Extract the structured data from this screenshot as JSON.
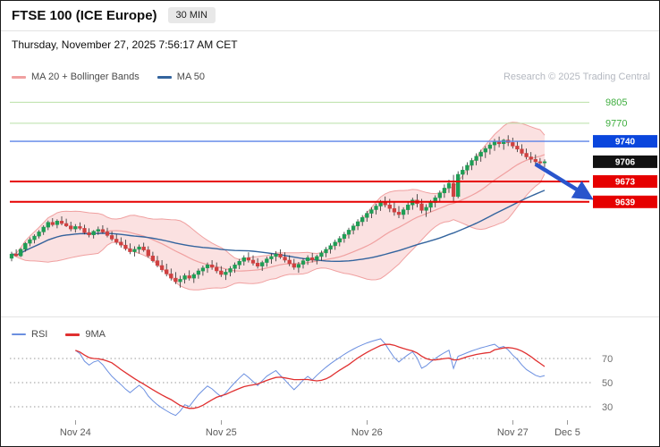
{
  "header": {
    "title": "FTSE 100 (ICE Europe)",
    "timeframe": "30 MIN",
    "datetime": "Thursday, November 27, 2025 7:56:17 AM CET"
  },
  "legend": {
    "main": [
      {
        "label": "MA 20 + Bollinger Bands"
      },
      {
        "label": "MA 50"
      }
    ],
    "credit": "Research © 2025 Trading Central",
    "lower": [
      {
        "label": "RSI"
      },
      {
        "label": "9MA"
      }
    ]
  },
  "chart_data": {
    "type": "candlestick",
    "title": "FTSE 100 (ICE Europe) 30 MIN",
    "ylim": [
      9460,
      9825
    ],
    "colors": {
      "up": "#1f9d55",
      "down": "#cf4040",
      "wick": "#2b2b2b",
      "band_fill": "rgba(244,163,163,0.33)",
      "ma20": "#f0a0a0",
      "ma50": "#33649e",
      "rsi": "#6b8fe0",
      "rsi_ma": "#e03030",
      "level_green_line": "#b9e0a6",
      "level_green_text": "#3fae3f",
      "level_blue_line": "#5b84e8",
      "level_red": "#e60000"
    },
    "levels": [
      {
        "label": "9805",
        "value": 9805,
        "line_color": "#b9e0a6",
        "line_width": 1,
        "text_color": "#3fae3f",
        "badge": null
      },
      {
        "label": "9770",
        "value": 9770,
        "line_color": "#b9e0a6",
        "line_width": 1,
        "text_color": "#3fae3f",
        "badge": null
      },
      {
        "label": "9740",
        "value": 9740,
        "line_color": "#5b84e8",
        "line_width": 1.4,
        "text_color": "#ffffff",
        "badge": "#0a46dd"
      },
      {
        "label": "9706",
        "value": 9706,
        "line_color": null,
        "line_width": 0,
        "text_color": "#ffffff",
        "badge": "#121212"
      },
      {
        "label": "9673",
        "value": 9673,
        "line_color": "#e60000",
        "line_width": 2,
        "text_color": "#ffffff",
        "badge": "#e60000"
      },
      {
        "label": "9639",
        "value": 9639,
        "line_color": "#e60000",
        "line_width": 2,
        "text_color": "#ffffff",
        "badge": "#e60000"
      }
    ],
    "candle_format": "[open, high, low, close]",
    "candles": [
      [
        9545,
        9556,
        9540,
        9552
      ],
      [
        9552,
        9560,
        9548,
        9549
      ],
      [
        9549,
        9562,
        9547,
        9560
      ],
      [
        9560,
        9572,
        9556,
        9570
      ],
      [
        9570,
        9580,
        9565,
        9576
      ],
      [
        9576,
        9585,
        9570,
        9582
      ],
      [
        9582,
        9592,
        9578,
        9589
      ],
      [
        9589,
        9600,
        9584,
        9597
      ],
      [
        9597,
        9608,
        9592,
        9605
      ],
      [
        9605,
        9612,
        9598,
        9601
      ],
      [
        9601,
        9610,
        9595,
        9607
      ],
      [
        9607,
        9615,
        9600,
        9603
      ],
      [
        9603,
        9611,
        9597,
        9599
      ],
      [
        9599,
        9606,
        9590,
        9594
      ],
      [
        9594,
        9602,
        9588,
        9598
      ],
      [
        9598,
        9605,
        9592,
        9595
      ],
      [
        9595,
        9601,
        9585,
        9588
      ],
      [
        9588,
        9595,
        9580,
        9584
      ],
      [
        9584,
        9592,
        9578,
        9590
      ],
      [
        9590,
        9598,
        9584,
        9593
      ],
      [
        9593,
        9600,
        9586,
        9589
      ],
      [
        9589,
        9596,
        9580,
        9583
      ],
      [
        9583,
        9590,
        9574,
        9577
      ],
      [
        9577,
        9585,
        9568,
        9572
      ],
      [
        9572,
        9580,
        9563,
        9567
      ],
      [
        9567,
        9576,
        9558,
        9561
      ],
      [
        9561,
        9570,
        9552,
        9556
      ],
      [
        9556,
        9565,
        9548,
        9560
      ],
      [
        9560,
        9568,
        9553,
        9564
      ],
      [
        9564,
        9571,
        9556,
        9559
      ],
      [
        9559,
        9565,
        9546,
        9549
      ],
      [
        9549,
        9556,
        9538,
        9541
      ],
      [
        9541,
        9549,
        9530,
        9533
      ],
      [
        9533,
        9542,
        9522,
        9526
      ],
      [
        9526,
        9536,
        9515,
        9519
      ],
      [
        9519,
        9528,
        9508,
        9512
      ],
      [
        9512,
        9522,
        9502,
        9506
      ],
      [
        9506,
        9516,
        9496,
        9510
      ],
      [
        9510,
        9520,
        9503,
        9516
      ],
      [
        9516,
        9525,
        9508,
        9512
      ],
      [
        9512,
        9521,
        9504,
        9518
      ],
      [
        9518,
        9528,
        9511,
        9524
      ],
      [
        9524,
        9533,
        9516,
        9529
      ],
      [
        9529,
        9538,
        9521,
        9534
      ],
      [
        9534,
        9542,
        9526,
        9530
      ],
      [
        9530,
        9538,
        9520,
        9524
      ],
      [
        9524,
        9532,
        9514,
        9518
      ],
      [
        9518,
        9527,
        9509,
        9522
      ],
      [
        9522,
        9532,
        9515,
        9528
      ],
      [
        9528,
        9538,
        9521,
        9534
      ],
      [
        9534,
        9544,
        9527,
        9540
      ],
      [
        9540,
        9550,
        9533,
        9546
      ],
      [
        9546,
        9555,
        9538,
        9542
      ],
      [
        9542,
        9550,
        9533,
        9537
      ],
      [
        9537,
        9545,
        9528,
        9532
      ],
      [
        9532,
        9541,
        9524,
        9538
      ],
      [
        9538,
        9548,
        9531,
        9544
      ],
      [
        9544,
        9553,
        9536,
        9548
      ],
      [
        9548,
        9557,
        9540,
        9552
      ],
      [
        9552,
        9560,
        9544,
        9547
      ],
      [
        9547,
        9555,
        9538,
        9542
      ],
      [
        9542,
        9550,
        9532,
        9536
      ],
      [
        9536,
        9544,
        9526,
        9530
      ],
      [
        9530,
        9539,
        9521,
        9535
      ],
      [
        9535,
        9545,
        9528,
        9541
      ],
      [
        9541,
        9550,
        9534,
        9546
      ],
      [
        9546,
        9554,
        9538,
        9542
      ],
      [
        9542,
        9551,
        9535,
        9548
      ],
      [
        9548,
        9558,
        9541,
        9554
      ],
      [
        9554,
        9564,
        9547,
        9560
      ],
      [
        9560,
        9570,
        9553,
        9566
      ],
      [
        9566,
        9576,
        9559,
        9572
      ],
      [
        9572,
        9582,
        9565,
        9578
      ],
      [
        9578,
        9589,
        9571,
        9585
      ],
      [
        9585,
        9596,
        9578,
        9592
      ],
      [
        9592,
        9603,
        9585,
        9599
      ],
      [
        9599,
        9610,
        9592,
        9606
      ],
      [
        9606,
        9617,
        9599,
        9613
      ],
      [
        9613,
        9624,
        9606,
        9620
      ],
      [
        9620,
        9630,
        9612,
        9626
      ],
      [
        9626,
        9636,
        9618,
        9632
      ],
      [
        9632,
        9642,
        9624,
        9638
      ],
      [
        9638,
        9648,
        9630,
        9634
      ],
      [
        9634,
        9644,
        9622,
        9628
      ],
      [
        9628,
        9638,
        9616,
        9622
      ],
      [
        9622,
        9632,
        9612,
        9618
      ],
      [
        9618,
        9630,
        9610,
        9626
      ],
      [
        9626,
        9638,
        9618,
        9634
      ],
      [
        9634,
        9646,
        9626,
        9642
      ],
      [
        9642,
        9652,
        9630,
        9636
      ],
      [
        9636,
        9644,
        9620,
        9625
      ],
      [
        9625,
        9635,
        9614,
        9630
      ],
      [
        9630,
        9642,
        9622,
        9638
      ],
      [
        9638,
        9650,
        9630,
        9646
      ],
      [
        9646,
        9658,
        9638,
        9654
      ],
      [
        9654,
        9668,
        9646,
        9662
      ],
      [
        9662,
        9676,
        9654,
        9670
      ],
      [
        9670,
        9684,
        9640,
        9648
      ],
      [
        9648,
        9690,
        9645,
        9685
      ],
      [
        9685,
        9698,
        9676,
        9692
      ],
      [
        9692,
        9705,
        9684,
        9700
      ],
      [
        9700,
        9712,
        9692,
        9708
      ],
      [
        9708,
        9720,
        9700,
        9715
      ],
      [
        9715,
        9726,
        9706,
        9722
      ],
      [
        9722,
        9732,
        9712,
        9728
      ],
      [
        9728,
        9738,
        9718,
        9734
      ],
      [
        9734,
        9744,
        9724,
        9740
      ],
      [
        9740,
        9748,
        9730,
        9736
      ],
      [
        9736,
        9744,
        9726,
        9742
      ],
      [
        9742,
        9750,
        9732,
        9738
      ],
      [
        9738,
        9746,
        9728,
        9732
      ],
      [
        9732,
        9740,
        9722,
        9727
      ],
      [
        9727,
        9735,
        9716,
        9720
      ],
      [
        9720,
        9728,
        9710,
        9714
      ],
      [
        9714,
        9722,
        9704,
        9710
      ],
      [
        9710,
        9718,
        9700,
        9706
      ],
      [
        9706,
        9712,
        9698,
        9704
      ],
      [
        9704,
        9710,
        9697,
        9706
      ]
    ],
    "x_ticks": [
      {
        "label": "Nov 24",
        "index": 14
      },
      {
        "label": "Nov 25",
        "index": 46
      },
      {
        "label": "Nov 26",
        "index": 78
      },
      {
        "label": "Nov 27",
        "index": 110
      },
      {
        "label": "Dec 5",
        "index": 122
      }
    ],
    "arrow": {
      "direction": "down",
      "color": "#2a55cc",
      "from": {
        "i": 115,
        "price": 9702
      },
      "to": {
        "i": 127,
        "price": 9646
      }
    },
    "rsi": {
      "period": 14,
      "ma_period": 9,
      "guides": [
        70,
        50,
        30
      ]
    }
  }
}
